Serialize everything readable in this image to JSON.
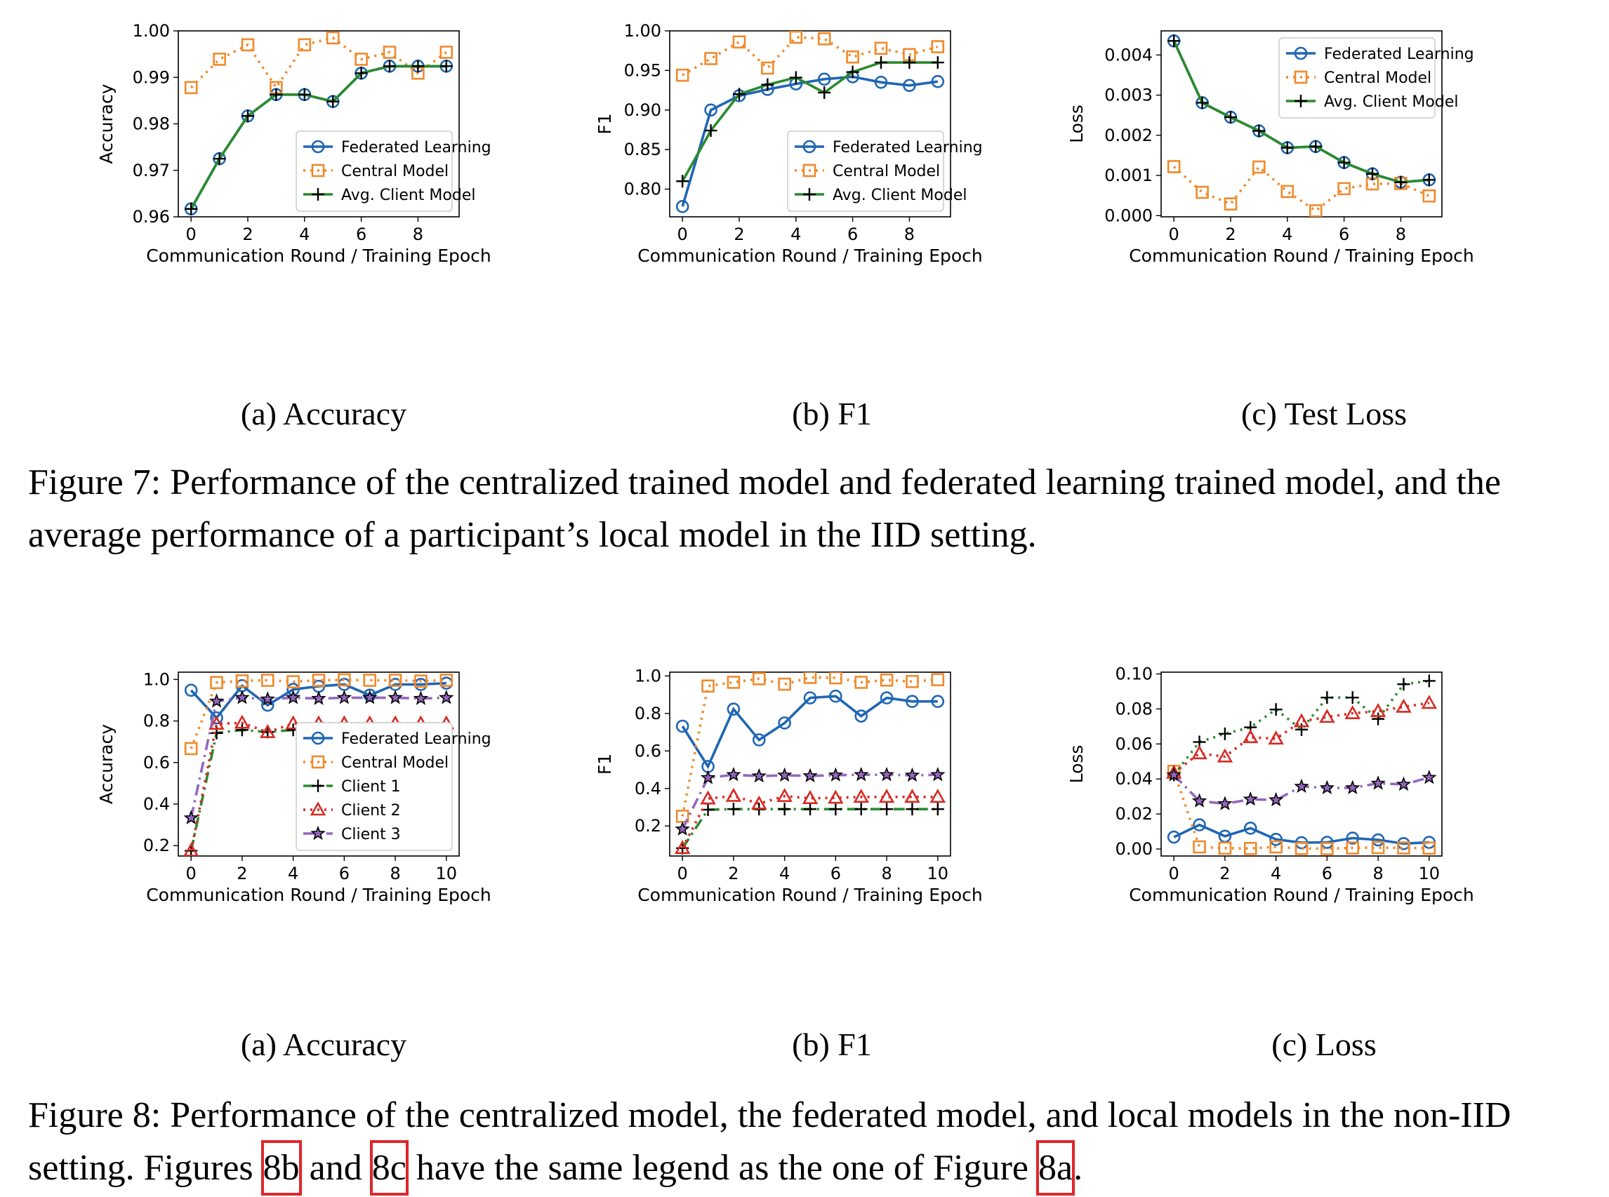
{
  "colors": {
    "fl": "#1f66b4",
    "central": "#f08a2b",
    "client_avg": "#2b8a2e",
    "c1": "#2b8a2e",
    "c2": "#d62a23",
    "c3": "#9467bd",
    "cross": "#000000",
    "ref": "#e0262a"
  },
  "chart_data": [
    {
      "id": "fig7a",
      "type": "line",
      "caption": "(a) Accuracy",
      "xlabel": "Communication Round / Training Epoch",
      "ylabel": "Accuracy",
      "xlim": [
        -0.45,
        9.45
      ],
      "ylim": [
        0.96,
        1.0
      ],
      "xticks": [
        0,
        2,
        4,
        6,
        8
      ],
      "yticks": [
        0.96,
        0.97,
        0.98,
        0.99,
        1.0
      ],
      "ytick_labels": [
        "0.96",
        "0.97",
        "0.98",
        "0.99",
        "1.00"
      ],
      "legend_pos": "lower-right",
      "series": [
        {
          "name": "Federated Learning",
          "color": "fl",
          "dash": "solid",
          "marker": "circle",
          "x": [
            0,
            1,
            2,
            3,
            4,
            5,
            6,
            7,
            8,
            9
          ],
          "values": [
            0.9617,
            0.9725,
            0.9817,
            0.9863,
            0.9863,
            0.9848,
            0.9909,
            0.9924,
            0.9924,
            0.9924
          ]
        },
        {
          "name": "Central Model",
          "color": "central",
          "dash": "dot",
          "marker": "square",
          "x": [
            0,
            1,
            2,
            3,
            4,
            5,
            6,
            7,
            8,
            9
          ],
          "values": [
            0.9878,
            0.9939,
            0.997,
            0.9878,
            0.997,
            0.9985,
            0.9939,
            0.9954,
            0.9909,
            0.9954
          ]
        },
        {
          "name": "Avg. Client Model",
          "color": "client_avg",
          "dash": "solid",
          "marker": "plus",
          "x": [
            0,
            1,
            2,
            3,
            4,
            5,
            6,
            7,
            8,
            9
          ],
          "values": [
            0.9617,
            0.9725,
            0.9817,
            0.9863,
            0.9863,
            0.9848,
            0.9909,
            0.9924,
            0.9924,
            0.9924
          ]
        }
      ]
    },
    {
      "id": "fig7b",
      "type": "line",
      "caption": "(b) F1",
      "xlabel": "Communication Round / Training Epoch",
      "ylabel": "F1",
      "xlim": [
        -0.45,
        9.45
      ],
      "ylim": [
        0.765,
        1.0
      ],
      "xticks": [
        0,
        2,
        4,
        6,
        8
      ],
      "yticks": [
        0.8,
        0.85,
        0.9,
        0.95,
        1.0
      ],
      "ytick_labels": [
        "0.80",
        "0.85",
        "0.90",
        "0.95",
        "1.00"
      ],
      "legend_pos": "lower-right",
      "series": [
        {
          "name": "Federated Learning",
          "color": "fl",
          "dash": "solid",
          "marker": "circle",
          "x": [
            0,
            1,
            2,
            3,
            4,
            5,
            6,
            7,
            8,
            9
          ],
          "values": [
            0.778,
            0.9,
            0.918,
            0.926,
            0.933,
            0.939,
            0.942,
            0.935,
            0.931,
            0.936
          ]
        },
        {
          "name": "Central Model",
          "color": "central",
          "dash": "dot",
          "marker": "square",
          "x": [
            0,
            1,
            2,
            3,
            4,
            5,
            6,
            7,
            8,
            9
          ],
          "values": [
            0.944,
            0.965,
            0.986,
            0.953,
            0.992,
            0.99,
            0.967,
            0.978,
            0.97,
            0.98
          ]
        },
        {
          "name": "Avg. Client Model",
          "color": "client_avg",
          "dash": "solid",
          "marker": "plus",
          "x": [
            0,
            1,
            2,
            3,
            4,
            5,
            6,
            7,
            8,
            9
          ],
          "values": [
            0.81,
            0.874,
            0.92,
            0.932,
            0.941,
            0.922,
            0.948,
            0.96,
            0.96,
            0.96
          ]
        }
      ]
    },
    {
      "id": "fig7c",
      "type": "line",
      "caption": "(c) Test Loss",
      "xlabel": "Communication Round / Training Epoch",
      "ylabel": "Loss",
      "xlim": [
        -0.45,
        9.45
      ],
      "ylim": [
        -3e-05,
        0.0046
      ],
      "xticks": [
        0,
        2,
        4,
        6,
        8
      ],
      "yticks": [
        0.0,
        0.001,
        0.002,
        0.003,
        0.004
      ],
      "ytick_labels": [
        "0.000",
        "0.001",
        "0.002",
        "0.003",
        "0.004"
      ],
      "legend_pos": "upper-right",
      "series": [
        {
          "name": "Federated Learning",
          "color": "fl",
          "dash": "solid",
          "marker": "circle",
          "x": [
            0,
            1,
            2,
            3,
            4,
            5,
            6,
            7,
            8,
            9
          ],
          "values": [
            0.00435,
            0.00281,
            0.00245,
            0.00211,
            0.00169,
            0.00172,
            0.00132,
            0.00104,
            0.00083,
            0.00089
          ]
        },
        {
          "name": "Central Model",
          "color": "central",
          "dash": "dot",
          "marker": "square",
          "x": [
            0,
            1,
            2,
            3,
            4,
            5,
            6,
            7,
            8,
            9
          ],
          "values": [
            0.00122,
            0.00058,
            0.00029,
            0.00121,
            0.0006,
            0.00012,
            0.00067,
            0.00079,
            0.0008,
            0.00049
          ]
        },
        {
          "name": "Avg. Client Model",
          "color": "client_avg",
          "dash": "solid",
          "marker": "plus",
          "x": [
            0,
            1,
            2,
            3,
            4,
            5,
            6,
            7,
            8,
            9
          ],
          "values": [
            0.00435,
            0.00281,
            0.00245,
            0.00211,
            0.00169,
            0.00172,
            0.00132,
            0.00104,
            0.00083,
            0.00089
          ]
        }
      ]
    },
    {
      "id": "fig8a",
      "type": "line",
      "caption": "(a) Accuracy",
      "xlabel": "Communication Round / Training Epoch",
      "ylabel": "Accuracy",
      "xlim": [
        -0.5,
        10.5
      ],
      "ylim": [
        0.15,
        1.035
      ],
      "xticks": [
        0,
        2,
        4,
        6,
        8,
        10
      ],
      "yticks": [
        0.2,
        0.4,
        0.6,
        0.8,
        1.0
      ],
      "ytick_labels": [
        "0.2",
        "0.4",
        "0.6",
        "0.8",
        "1.0"
      ],
      "legend_pos": "lower-right",
      "series": [
        {
          "name": "Federated Learning",
          "color": "fl",
          "dash": "solid",
          "marker": "circle",
          "x": [
            0,
            1,
            2,
            3,
            4,
            5,
            6,
            7,
            8,
            9,
            10
          ],
          "values": [
            0.948,
            0.815,
            0.97,
            0.876,
            0.952,
            0.967,
            0.976,
            0.924,
            0.976,
            0.976,
            0.982
          ]
        },
        {
          "name": "Central Model",
          "color": "central",
          "dash": "dot",
          "marker": "square",
          "x": [
            0,
            1,
            2,
            3,
            4,
            5,
            6,
            7,
            8,
            9,
            10
          ],
          "values": [
            0.667,
            0.985,
            0.993,
            0.996,
            0.989,
            0.996,
            0.998,
            0.996,
            0.996,
            0.992,
            0.996
          ]
        },
        {
          "name": "Client 1",
          "color": "c1",
          "dash": "dashdot",
          "marker": "plus",
          "x": [
            0,
            1,
            2,
            3,
            4,
            5,
            6,
            7,
            8,
            9,
            10
          ],
          "values": [
            0.175,
            0.742,
            0.757,
            0.747,
            0.757,
            0.757,
            0.752,
            0.757,
            0.757,
            0.757,
            0.757
          ]
        },
        {
          "name": "Client 2",
          "color": "c2",
          "dash": "dot",
          "marker": "triangle",
          "x": [
            0,
            1,
            2,
            3,
            4,
            5,
            6,
            7,
            8,
            9,
            10
          ],
          "values": [
            0.175,
            0.786,
            0.791,
            0.746,
            0.788,
            0.788,
            0.788,
            0.788,
            0.788,
            0.788,
            0.788
          ]
        },
        {
          "name": "Client 3",
          "color": "c3",
          "dash": "dashdot",
          "marker": "star",
          "x": [
            0,
            1,
            2,
            3,
            4,
            5,
            6,
            7,
            8,
            9,
            10
          ],
          "values": [
            0.333,
            0.895,
            0.912,
            0.905,
            0.912,
            0.908,
            0.912,
            0.912,
            0.912,
            0.908,
            0.912
          ]
        }
      ]
    },
    {
      "id": "fig8b",
      "type": "line",
      "caption": "(b) F1",
      "xlabel": "Communication Round / Training Epoch",
      "ylabel": "F1",
      "xlim": [
        -0.5,
        10.5
      ],
      "ylim": [
        0.04,
        1.02
      ],
      "xticks": [
        0,
        2,
        4,
        6,
        8,
        10
      ],
      "yticks": [
        0.2,
        0.4,
        0.6,
        0.8,
        1.0
      ],
      "ytick_labels": [
        "0.2",
        "0.4",
        "0.6",
        "0.8",
        "1.0"
      ],
      "legend_pos": "none",
      "series": [
        {
          "name": "Federated Learning",
          "color": "fl",
          "dash": "solid",
          "marker": "circle",
          "x": [
            0,
            1,
            2,
            3,
            4,
            5,
            6,
            7,
            8,
            9,
            10
          ],
          "values": [
            0.732,
            0.517,
            0.823,
            0.659,
            0.749,
            0.883,
            0.892,
            0.786,
            0.883,
            0.864,
            0.864
          ]
        },
        {
          "name": "Central Model",
          "color": "central",
          "dash": "dot",
          "marker": "square",
          "x": [
            0,
            1,
            2,
            3,
            4,
            5,
            6,
            7,
            8,
            9,
            10
          ],
          "values": [
            0.252,
            0.946,
            0.966,
            0.985,
            0.956,
            0.992,
            0.99,
            0.966,
            0.978,
            0.97,
            0.98
          ]
        },
        {
          "name": "Client 1",
          "color": "c1",
          "dash": "dashdot",
          "marker": "plus",
          "x": [
            0,
            1,
            2,
            3,
            4,
            5,
            6,
            7,
            8,
            9,
            10
          ],
          "values": [
            0.082,
            0.287,
            0.29,
            0.29,
            0.29,
            0.29,
            0.29,
            0.29,
            0.29,
            0.29,
            0.29
          ]
        },
        {
          "name": "Client 2",
          "color": "c2",
          "dash": "dot",
          "marker": "triangle",
          "x": [
            0,
            1,
            2,
            3,
            4,
            5,
            6,
            7,
            8,
            9,
            10
          ],
          "values": [
            0.082,
            0.346,
            0.36,
            0.319,
            0.359,
            0.348,
            0.35,
            0.355,
            0.355,
            0.355,
            0.355
          ]
        },
        {
          "name": "Client 3",
          "color": "c3",
          "dash": "dashdot",
          "marker": "star",
          "x": [
            0,
            1,
            2,
            3,
            4,
            5,
            6,
            7,
            8,
            9,
            10
          ],
          "values": [
            0.183,
            0.457,
            0.473,
            0.466,
            0.47,
            0.467,
            0.471,
            0.473,
            0.473,
            0.47,
            0.473
          ]
        }
      ]
    },
    {
      "id": "fig8c",
      "type": "line",
      "caption": "(c) Loss",
      "xlabel": "Communication Round / Training Epoch",
      "ylabel": "Loss",
      "xlim": [
        -0.5,
        10.5
      ],
      "ylim": [
        -0.004,
        0.101
      ],
      "xticks": [
        0,
        2,
        4,
        6,
        8,
        10
      ],
      "yticks": [
        0.0,
        0.02,
        0.04,
        0.06,
        0.08,
        0.1
      ],
      "ytick_labels": [
        "0.00",
        "0.02",
        "0.04",
        "0.06",
        "0.08",
        "0.10"
      ],
      "legend_pos": "none",
      "series": [
        {
          "name": "Federated Learning",
          "color": "fl",
          "dash": "solid",
          "marker": "circle",
          "x": [
            0,
            1,
            2,
            3,
            4,
            5,
            6,
            7,
            8,
            9,
            10
          ],
          "values": [
            0.0068,
            0.0138,
            0.0073,
            0.0119,
            0.0055,
            0.0036,
            0.0038,
            0.0062,
            0.0052,
            0.0031,
            0.0038
          ]
        },
        {
          "name": "Central Model",
          "color": "central",
          "dash": "dot",
          "marker": "square",
          "x": [
            0,
            1,
            2,
            3,
            4,
            5,
            6,
            7,
            8,
            9,
            10
          ],
          "values": [
            0.0444,
            0.0012,
            0.0005,
            0.0003,
            0.0012,
            0.0003,
            0.0002,
            0.0006,
            0.0008,
            0.0006,
            0.0005
          ]
        },
        {
          "name": "Client 1",
          "color": "c1",
          "dash": "dot",
          "marker": "plus",
          "x": [
            0,
            1,
            2,
            3,
            4,
            5,
            6,
            7,
            8,
            9,
            10
          ],
          "values": [
            0.0423,
            0.0611,
            0.0658,
            0.0695,
            0.0797,
            0.0682,
            0.0865,
            0.0865,
            0.0743,
            0.0941,
            0.096
          ]
        },
        {
          "name": "Client 2",
          "color": "c2",
          "dash": "dot",
          "marker": "triangle",
          "x": [
            0,
            1,
            2,
            3,
            4,
            5,
            6,
            7,
            8,
            9,
            10
          ],
          "values": [
            0.0435,
            0.0546,
            0.0528,
            0.0638,
            0.063,
            0.0729,
            0.0754,
            0.0775,
            0.0787,
            0.0812,
            0.0834
          ]
        },
        {
          "name": "Client 3",
          "color": "c3",
          "dash": "dashdot",
          "marker": "star",
          "x": [
            0,
            1,
            2,
            3,
            4,
            5,
            6,
            7,
            8,
            9,
            10
          ],
          "values": [
            0.0423,
            0.0274,
            0.0258,
            0.0284,
            0.028,
            0.0357,
            0.0349,
            0.0349,
            0.0375,
            0.0369,
            0.0408
          ]
        }
      ]
    }
  ],
  "figure7": {
    "caption": "Figure 7: Performance of the centralized trained model and federated learning trained model, and the average performance of a participant’s local model in the IID setting."
  },
  "figure8": {
    "caption_pre": "Figure 8: Performance of the centralized model, the federated model, and local models in the non-IID setting. Figures ",
    "ref_b": "8b",
    "mid1": " and ",
    "ref_c": "8c",
    "mid2": " have the same legend as the one of Figure ",
    "ref_a": "8a",
    "end": "."
  }
}
